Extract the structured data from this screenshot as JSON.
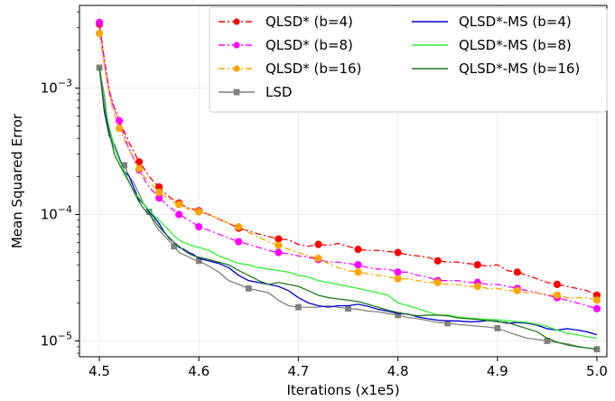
{
  "chart_data": {
    "type": "line",
    "title": "",
    "xlabel": "Iterations (x1e5)",
    "ylabel": "Mean Squared Error",
    "xlim": [
      4.48,
      5.01
    ],
    "ylim": [
      7.5e-06,
      0.0045
    ],
    "yscale": "log",
    "grid": true,
    "legend_position": "top-right",
    "xticks": [
      {
        "value": 4.5,
        "label": "4.5"
      },
      {
        "value": 4.6,
        "label": "4.6"
      },
      {
        "value": 4.7,
        "label": "4.7"
      },
      {
        "value": 4.8,
        "label": "4.8"
      },
      {
        "value": 4.9,
        "label": "4.9"
      },
      {
        "value": 5.0,
        "label": "5.0"
      }
    ],
    "yticks": [
      {
        "value": 1e-05,
        "base": "10",
        "exp": "−5"
      },
      {
        "value": 0.0001,
        "base": "10",
        "exp": "−4"
      },
      {
        "value": 0.001,
        "base": "10",
        "exp": "−3"
      }
    ],
    "series": [
      {
        "name": "QLSD* (b=4)",
        "color": "#ff0000",
        "dash": "7,3,2,3",
        "marker": "circle",
        "marker_every": 4,
        "x": [
          4.5,
          4.505,
          4.51,
          4.515,
          4.52,
          4.525,
          4.53,
          4.535,
          4.54,
          4.545,
          4.55,
          4.555,
          4.56,
          4.565,
          4.57,
          4.575,
          4.58,
          4.585,
          4.59,
          4.595,
          4.6,
          4.61,
          4.62,
          4.63,
          4.64,
          4.65,
          4.66,
          4.67,
          4.68,
          4.69,
          4.7,
          4.71,
          4.72,
          4.73,
          4.74,
          4.75,
          4.76,
          4.77,
          4.78,
          4.79,
          4.8,
          4.81,
          4.82,
          4.83,
          4.84,
          4.85,
          4.86,
          4.87,
          4.88,
          4.89,
          4.9,
          4.91,
          4.92,
          4.93,
          4.94,
          4.95,
          4.96,
          4.97,
          4.98,
          4.99,
          5.0
        ],
        "y": [
          0.0032,
          0.0017,
          0.00095,
          0.0007,
          0.00055,
          0.00045,
          0.00037,
          0.00031,
          0.00026,
          0.00023,
          0.0002,
          0.00018,
          0.000165,
          0.00015,
          0.000138,
          0.00013,
          0.000123,
          0.000117,
          0.000112,
          0.00011,
          0.000107,
          0.0001,
          9.2e-05,
          8.5e-05,
          7.8e-05,
          7.4e-05,
          7e-05,
          6.7e-05,
          6.4e-05,
          6.3e-05,
          5.8e-05,
          5.6e-05,
          5.8e-05,
          5.7e-05,
          5.9e-05,
          5.6e-05,
          5.3e-05,
          5.2e-05,
          5.2e-05,
          5.1e-05,
          5e-05,
          4.8e-05,
          4.7e-05,
          4.6e-05,
          4.3e-05,
          4.2e-05,
          4.2e-05,
          4.1e-05,
          4e-05,
          3.9e-05,
          4e-05,
          3.6e-05,
          3.5e-05,
          3.3e-05,
          3.1e-05,
          2.9e-05,
          2.8e-05,
          2.7e-05,
          2.6e-05,
          2.5e-05,
          2.3e-05
        ]
      },
      {
        "name": "QLSD* (b=8)",
        "color": "#ff00ff",
        "dash": "7,3,2,3",
        "marker": "circle",
        "marker_every": 4,
        "x": [
          4.5,
          4.505,
          4.51,
          4.515,
          4.52,
          4.525,
          4.53,
          4.535,
          4.54,
          4.545,
          4.55,
          4.555,
          4.56,
          4.565,
          4.57,
          4.575,
          4.58,
          4.585,
          4.59,
          4.595,
          4.6,
          4.61,
          4.62,
          4.63,
          4.64,
          4.65,
          4.66,
          4.67,
          4.68,
          4.69,
          4.7,
          4.71,
          4.72,
          4.73,
          4.74,
          4.75,
          4.76,
          4.77,
          4.78,
          4.79,
          4.8,
          4.81,
          4.82,
          4.83,
          4.84,
          4.85,
          4.86,
          4.87,
          4.88,
          4.89,
          4.9,
          4.91,
          4.92,
          4.93,
          4.94,
          4.95,
          4.96,
          4.97,
          4.98,
          4.99,
          5.0
        ],
        "y": [
          0.0033,
          0.0016,
          0.00092,
          0.00068,
          0.00055,
          0.00042,
          0.00033,
          0.00027,
          0.000225,
          0.00019,
          0.000165,
          0.00015,
          0.000135,
          0.000125,
          0.000115,
          0.000108,
          0.0001,
          9.5e-05,
          9e-05,
          8.5e-05,
          8e-05,
          7.5e-05,
          7e-05,
          6.5e-05,
          6.1e-05,
          5.8e-05,
          5.5e-05,
          5.2e-05,
          5e-05,
          4.9e-05,
          4.7e-05,
          4.6e-05,
          4.4e-05,
          4.2e-05,
          4.2e-05,
          4.1e-05,
          4e-05,
          3.8e-05,
          3.7e-05,
          3.7e-05,
          3.5e-05,
          3.5e-05,
          3.3e-05,
          3.2e-05,
          3e-05,
          3e-05,
          3e-05,
          2.9e-05,
          2.9e-05,
          2.8e-05,
          2.8e-05,
          2.7e-05,
          2.6e-05,
          2.5e-05,
          2.4e-05,
          2.3e-05,
          2.2e-05,
          2.1e-05,
          2e-05,
          1.9e-05,
          1.8e-05
        ]
      },
      {
        "name": "QLSD* (b=16)",
        "color": "#ffa500",
        "dash": "7,3,2,3",
        "marker": "circle",
        "marker_every": 4,
        "x": [
          4.5,
          4.505,
          4.51,
          4.515,
          4.52,
          4.525,
          4.53,
          4.535,
          4.54,
          4.545,
          4.55,
          4.555,
          4.56,
          4.565,
          4.57,
          4.575,
          4.58,
          4.585,
          4.59,
          4.595,
          4.6,
          4.61,
          4.62,
          4.63,
          4.64,
          4.65,
          4.66,
          4.67,
          4.68,
          4.69,
          4.7,
          4.71,
          4.72,
          4.73,
          4.74,
          4.75,
          4.76,
          4.77,
          4.78,
          4.79,
          4.8,
          4.81,
          4.82,
          4.83,
          4.84,
          4.85,
          4.86,
          4.87,
          4.88,
          4.89,
          4.9,
          4.91,
          4.92,
          4.93,
          4.94,
          4.95,
          4.96,
          4.97,
          4.98,
          4.99,
          5.0
        ],
        "y": [
          0.0027,
          0.0015,
          0.00088,
          0.00062,
          0.00048,
          0.00039,
          0.00032,
          0.00027,
          0.00023,
          0.0002,
          0.00018,
          0.000165,
          0.00015,
          0.00014,
          0.000132,
          0.000125,
          0.00012,
          0.000115,
          0.00011,
          0.000108,
          0.000105,
          0.0001,
          9.2e-05,
          8.5e-05,
          8e-05,
          7.2e-05,
          6.6e-05,
          6.1e-05,
          5.7e-05,
          5.3e-05,
          5e-05,
          4.7e-05,
          4.5e-05,
          4.1e-05,
          3.8e-05,
          3.6e-05,
          3.5e-05,
          3.4e-05,
          3.3e-05,
          3.2e-05,
          3.1e-05,
          3.1e-05,
          3e-05,
          2.9e-05,
          2.9e-05,
          2.8e-05,
          2.8e-05,
          2.7e-05,
          2.7e-05,
          2.6e-05,
          2.6e-05,
          2.5e-05,
          2.5e-05,
          2.4e-05,
          2.4e-05,
          2.3e-05,
          2.3e-05,
          2.2e-05,
          2.2e-05,
          2.2e-05,
          2.1e-05
        ]
      },
      {
        "name": "LSD",
        "color": "#808080",
        "dash": "",
        "marker": "square",
        "marker_every": 5,
        "x": [
          4.5,
          4.505,
          4.51,
          4.515,
          4.52,
          4.525,
          4.53,
          4.535,
          4.54,
          4.545,
          4.55,
          4.555,
          4.56,
          4.565,
          4.57,
          4.575,
          4.58,
          4.585,
          4.59,
          4.595,
          4.6,
          4.61,
          4.62,
          4.63,
          4.64,
          4.65,
          4.66,
          4.67,
          4.68,
          4.69,
          4.7,
          4.71,
          4.72,
          4.73,
          4.74,
          4.75,
          4.76,
          4.77,
          4.78,
          4.79,
          4.8,
          4.81,
          4.82,
          4.83,
          4.84,
          4.85,
          4.86,
          4.87,
          4.88,
          4.89,
          4.9,
          4.91,
          4.92,
          4.93,
          4.94,
          4.95,
          4.96,
          4.97,
          4.98,
          4.99,
          5.0
        ],
        "y": [
          0.00145,
          0.00088,
          0.00042,
          0.00034,
          0.00027,
          0.000245,
          0.0002,
          0.000175,
          0.000145,
          0.00012,
          0.000105,
          8.5e-05,
          7.5e-05,
          6.8e-05,
          6.2e-05,
          5.6e-05,
          5e-05,
          4.8e-05,
          4.6e-05,
          4.4e-05,
          4.3e-05,
          3.9e-05,
          3.5e-05,
          3e-05,
          2.8e-05,
          2.6e-05,
          2.5e-05,
          2.4e-05,
          2.1e-05,
          1.9e-05,
          1.85e-05,
          1.85e-05,
          1.85e-05,
          1.9e-05,
          1.85e-05,
          1.8e-05,
          1.78e-05,
          1.72e-05,
          1.7e-05,
          1.65e-05,
          1.6e-05,
          1.53e-05,
          1.5e-05,
          1.45e-05,
          1.4e-05,
          1.38e-05,
          1.35e-05,
          1.33e-05,
          1.31e-05,
          1.29e-05,
          1.26e-05,
          1.18e-05,
          1.11e-05,
          1.05e-05,
          1.03e-05,
          1e-05,
          9.7e-06,
          9.5e-06,
          9.1e-06,
          8.8e-06,
          8.6e-06
        ]
      },
      {
        "name": "QLSD*-MS (b=4)",
        "color": "#0000cd",
        "dash": "",
        "marker": "none",
        "x": [
          4.5,
          4.505,
          4.51,
          4.515,
          4.52,
          4.525,
          4.53,
          4.535,
          4.54,
          4.545,
          4.55,
          4.555,
          4.56,
          4.565,
          4.57,
          4.575,
          4.58,
          4.585,
          4.59,
          4.595,
          4.6,
          4.61,
          4.62,
          4.63,
          4.64,
          4.65,
          4.66,
          4.67,
          4.68,
          4.69,
          4.7,
          4.71,
          4.72,
          4.73,
          4.74,
          4.75,
          4.76,
          4.77,
          4.78,
          4.79,
          4.8,
          4.81,
          4.82,
          4.83,
          4.84,
          4.85,
          4.86,
          4.87,
          4.88,
          4.89,
          4.9,
          4.91,
          4.92,
          4.93,
          4.94,
          4.95,
          4.96,
          4.97,
          4.98,
          4.99,
          5.0
        ],
        "y": [
          0.00145,
          0.00065,
          0.00042,
          0.00036,
          0.00028,
          0.00022,
          0.0002,
          0.00016,
          0.00013,
          0.00012,
          0.000105,
          9.5e-05,
          8.5e-05,
          7.3e-05,
          6.5e-05,
          6e-05,
          5.5e-05,
          5.3e-05,
          5e-05,
          4.8e-05,
          4.5e-05,
          4.3e-05,
          4.1e-05,
          3.8e-05,
          3.3e-05,
          3e-05,
          2.9e-05,
          2.8e-05,
          2.7e-05,
          2.5e-05,
          2.2e-05,
          2e-05,
          1.9e-05,
          1.85e-05,
          1.9e-05,
          1.9e-05,
          1.95e-05,
          1.88e-05,
          1.78e-05,
          1.72e-05,
          1.65e-05,
          1.63e-05,
          1.55e-05,
          1.5e-05,
          1.46e-05,
          1.44e-05,
          1.44e-05,
          1.42e-05,
          1.42e-05,
          1.45e-05,
          1.43e-05,
          1.38e-05,
          1.4e-05,
          1.38e-05,
          1.33e-05,
          1.25e-05,
          1.22e-05,
          1.25e-05,
          1.22e-05,
          1.18e-05,
          1.12e-05
        ]
      },
      {
        "name": "QLSD*-MS (b=8)",
        "color": "#33ee33",
        "dash": "",
        "marker": "none",
        "x": [
          4.5,
          4.505,
          4.51,
          4.515,
          4.52,
          4.525,
          4.53,
          4.535,
          4.54,
          4.545,
          4.55,
          4.555,
          4.56,
          4.565,
          4.57,
          4.575,
          4.58,
          4.585,
          4.59,
          4.595,
          4.6,
          4.61,
          4.62,
          4.63,
          4.64,
          4.65,
          4.66,
          4.67,
          4.68,
          4.69,
          4.7,
          4.71,
          4.72,
          4.73,
          4.74,
          4.75,
          4.76,
          4.77,
          4.78,
          4.79,
          4.8,
          4.81,
          4.82,
          4.83,
          4.84,
          4.85,
          4.86,
          4.87,
          4.88,
          4.89,
          4.9,
          4.91,
          4.92,
          4.93,
          4.94,
          4.95,
          4.96,
          4.97,
          4.98,
          4.99,
          5.0
        ],
        "y": [
          0.00145,
          0.00075,
          0.00048,
          0.00035,
          0.00027,
          0.00022,
          0.00018,
          0.00015,
          0.000135,
          0.00012,
          0.000108,
          9.8e-05,
          9e-05,
          8.2e-05,
          7.5e-05,
          6.8e-05,
          6.3e-05,
          6e-05,
          5.8e-05,
          5.6e-05,
          5.5e-05,
          5.2e-05,
          4.7e-05,
          4.4e-05,
          4.1e-05,
          4e-05,
          3.8e-05,
          3.7e-05,
          3.6e-05,
          3.5e-05,
          3.3e-05,
          3.2e-05,
          3e-05,
          2.9e-05,
          2.8e-05,
          2.7e-05,
          2.6e-05,
          2.5e-05,
          2.4e-05,
          2.3e-05,
          2e-05,
          1.9e-05,
          1.8e-05,
          1.7e-05,
          1.6e-05,
          1.6e-05,
          1.55e-05,
          1.52e-05,
          1.5e-05,
          1.48e-05,
          1.47e-05,
          1.45e-05,
          1.42e-05,
          1.4e-05,
          1.35e-05,
          1.3e-05,
          1.22e-05,
          1.15e-05,
          1.12e-05,
          1.08e-05,
          1.05e-05
        ]
      },
      {
        "name": "QLSD*-MS (b=16)",
        "color": "#1e7b1e",
        "dash": "",
        "marker": "none",
        "x": [
          4.5,
          4.505,
          4.51,
          4.515,
          4.52,
          4.525,
          4.53,
          4.535,
          4.54,
          4.545,
          4.55,
          4.555,
          4.56,
          4.565,
          4.57,
          4.575,
          4.58,
          4.585,
          4.59,
          4.595,
          4.6,
          4.61,
          4.62,
          4.63,
          4.64,
          4.65,
          4.66,
          4.67,
          4.68,
          4.69,
          4.7,
          4.71,
          4.72,
          4.73,
          4.74,
          4.75,
          4.76,
          4.77,
          4.78,
          4.79,
          4.8,
          4.81,
          4.82,
          4.83,
          4.84,
          4.85,
          4.86,
          4.87,
          4.88,
          4.89,
          4.9,
          4.91,
          4.92,
          4.93,
          4.94,
          4.95,
          4.96,
          4.97,
          4.98,
          4.99,
          5.0
        ],
        "y": [
          0.00145,
          0.0007,
          0.00045,
          0.0003,
          0.00025,
          0.00021,
          0.00018,
          0.00015,
          0.000125,
          0.00011,
          0.0001,
          9e-05,
          8e-05,
          7.2e-05,
          6.6e-05,
          6e-05,
          5.6e-05,
          5.2e-05,
          4.9e-05,
          4.7e-05,
          4.6e-05,
          4.4e-05,
          4.2e-05,
          4e-05,
          3.6e-05,
          3.3e-05,
          3e-05,
          2.8e-05,
          2.9e-05,
          2.8e-05,
          2.7e-05,
          2.5e-05,
          2.3e-05,
          2.2e-05,
          2.15e-05,
          2.1e-05,
          2.05e-05,
          1.95e-05,
          1.85e-05,
          1.75e-05,
          1.68e-05,
          1.62e-05,
          1.58e-05,
          1.6e-05,
          1.6e-05,
          1.58e-05,
          1.52e-05,
          1.5e-05,
          1.48e-05,
          1.45e-05,
          1.42e-05,
          1.4e-05,
          1.32e-05,
          1.25e-05,
          1.18e-05,
          1.05e-05,
          9.8e-06,
          9.3e-06,
          9e-06,
          8.8e-06,
          8.6e-06
        ]
      }
    ]
  }
}
